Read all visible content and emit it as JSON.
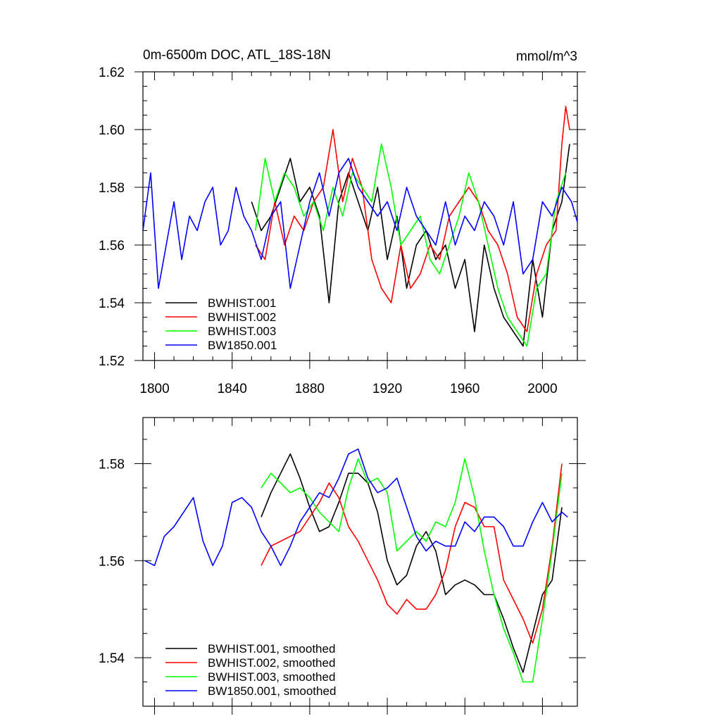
{
  "figure": {
    "title_left": "0m-6500m DOC, ATL_18S-18N",
    "title_right": "mmol/m^3"
  },
  "colors": {
    "BWHIST.001": "#000000",
    "BWHIST.002": "#ff0000",
    "BWHIST.003": "#00ff00",
    "BW1850.001": "#0000ff"
  },
  "chart_data": [
    {
      "type": "line",
      "panel": "top",
      "title": "0m-6500m DOC, ATL_18S-18N",
      "units_label": "mmol/m^3",
      "xlabel": "",
      "ylabel": "",
      "xlim": [
        1794,
        2018
      ],
      "ylim": [
        1.52,
        1.62
      ],
      "xticks": [
        1800,
        1840,
        1880,
        1920,
        1960,
        2000
      ],
      "xtick_labels": [
        "1800",
        "1840",
        "1880",
        "1920",
        "1960",
        "2000"
      ],
      "yticks": [
        1.52,
        1.54,
        1.56,
        1.58,
        1.6,
        1.62
      ],
      "ytick_labels": [
        "1.52",
        "1.54",
        "1.56",
        "1.58",
        "1.60",
        "1.62"
      ],
      "grid": false,
      "legend_position": "bottom-left",
      "series": [
        {
          "name": "BWHIST.001",
          "color": "#000000",
          "x": [
            1850,
            1855,
            1860,
            1865,
            1870,
            1875,
            1880,
            1885,
            1890,
            1895,
            1900,
            1905,
            1910,
            1915,
            1920,
            1925,
            1930,
            1935,
            1940,
            1945,
            1950,
            1955,
            1960,
            1965,
            1970,
            1975,
            1980,
            1985,
            1990,
            1995,
            2000,
            2005,
            2010,
            2014
          ],
          "y": [
            1.575,
            1.565,
            1.57,
            1.58,
            1.59,
            1.575,
            1.58,
            1.57,
            1.54,
            1.575,
            1.585,
            1.575,
            1.565,
            1.58,
            1.555,
            1.57,
            1.545,
            1.56,
            1.565,
            1.555,
            1.56,
            1.545,
            1.555,
            1.53,
            1.56,
            1.545,
            1.535,
            1.53,
            1.525,
            1.555,
            1.535,
            1.565,
            1.575,
            1.595
          ]
        },
        {
          "name": "BWHIST.002",
          "color": "#ff0000",
          "x": [
            1852,
            1857,
            1862,
            1867,
            1872,
            1877,
            1882,
            1887,
            1892,
            1897,
            1902,
            1907,
            1912,
            1917,
            1922,
            1927,
            1932,
            1937,
            1942,
            1947,
            1952,
            1957,
            1962,
            1967,
            1972,
            1977,
            1982,
            1987,
            1992,
            1997,
            2002,
            2007,
            2010,
            2012,
            2014
          ],
          "y": [
            1.56,
            1.555,
            1.575,
            1.56,
            1.57,
            1.565,
            1.575,
            1.58,
            1.6,
            1.575,
            1.59,
            1.58,
            1.555,
            1.545,
            1.54,
            1.56,
            1.545,
            1.55,
            1.56,
            1.555,
            1.57,
            1.575,
            1.58,
            1.575,
            1.565,
            1.56,
            1.55,
            1.535,
            1.53,
            1.55,
            1.56,
            1.565,
            1.595,
            1.608,
            1.6
          ]
        },
        {
          "name": "BWHIST.003",
          "color": "#00ff00",
          "x": [
            1852,
            1857,
            1862,
            1867,
            1872,
            1877,
            1882,
            1887,
            1892,
            1897,
            1902,
            1907,
            1912,
            1917,
            1922,
            1927,
            1932,
            1937,
            1942,
            1947,
            1952,
            1957,
            1962,
            1967,
            1972,
            1977,
            1982,
            1987,
            1992,
            1997,
            2002,
            2007,
            2012
          ],
          "y": [
            1.565,
            1.59,
            1.575,
            1.585,
            1.58,
            1.57,
            1.575,
            1.565,
            1.58,
            1.57,
            1.585,
            1.58,
            1.575,
            1.595,
            1.58,
            1.56,
            1.565,
            1.57,
            1.555,
            1.55,
            1.56,
            1.57,
            1.585,
            1.575,
            1.56,
            1.545,
            1.535,
            1.53,
            1.525,
            1.545,
            1.55,
            1.575,
            1.585
          ]
        },
        {
          "name": "BW1850.001",
          "color": "#0000ff",
          "x": [
            1794,
            1798,
            1802,
            1806,
            1810,
            1814,
            1818,
            1822,
            1826,
            1830,
            1834,
            1838,
            1842,
            1846,
            1850,
            1855,
            1860,
            1865,
            1870,
            1875,
            1880,
            1885,
            1890,
            1895,
            1900,
            1905,
            1910,
            1915,
            1920,
            1925,
            1930,
            1935,
            1940,
            1945,
            1950,
            1955,
            1960,
            1965,
            1970,
            1975,
            1980,
            1985,
            1990,
            1995,
            2000,
            2005,
            2010,
            2015,
            2018
          ],
          "y": [
            1.565,
            1.585,
            1.545,
            1.56,
            1.575,
            1.555,
            1.57,
            1.565,
            1.575,
            1.58,
            1.56,
            1.565,
            1.58,
            1.57,
            1.565,
            1.555,
            1.57,
            1.575,
            1.545,
            1.56,
            1.575,
            1.585,
            1.57,
            1.585,
            1.59,
            1.58,
            1.575,
            1.57,
            1.575,
            1.565,
            1.58,
            1.57,
            1.565,
            1.56,
            1.575,
            1.56,
            1.57,
            1.565,
            1.575,
            1.57,
            1.56,
            1.575,
            1.55,
            1.555,
            1.575,
            1.57,
            1.58,
            1.575,
            1.568
          ]
        }
      ]
    },
    {
      "type": "line",
      "panel": "bottom",
      "title": "",
      "xlabel": "",
      "ylabel": "",
      "xlim": [
        1794,
        2018
      ],
      "ylim": [
        1.53,
        1.5895
      ],
      "xticks": [
        1800,
        1840,
        1880,
        1920,
        1960,
        2000
      ],
      "yticks": [
        1.54,
        1.56,
        1.58
      ],
      "ytick_labels": [
        "1.54",
        "1.56",
        "1.58"
      ],
      "grid": false,
      "legend_position": "bottom-left",
      "series": [
        {
          "name": "BWHIST.001, smoothed",
          "color": "#000000",
          "x": [
            1855,
            1860,
            1865,
            1870,
            1875,
            1880,
            1885,
            1890,
            1895,
            1900,
            1905,
            1910,
            1915,
            1920,
            1925,
            1930,
            1935,
            1940,
            1945,
            1950,
            1955,
            1960,
            1965,
            1970,
            1975,
            1980,
            1985,
            1990,
            1995,
            2000,
            2005,
            2010
          ],
          "y": [
            1.569,
            1.574,
            1.578,
            1.582,
            1.577,
            1.571,
            1.566,
            1.567,
            1.572,
            1.578,
            1.578,
            1.576,
            1.57,
            1.56,
            1.555,
            1.557,
            1.563,
            1.566,
            1.562,
            1.553,
            1.555,
            1.556,
            1.555,
            1.553,
            1.553,
            1.548,
            1.542,
            1.537,
            1.545,
            1.553,
            1.556,
            1.571
          ]
        },
        {
          "name": "BWHIST.002, smoothed",
          "color": "#ff0000",
          "x": [
            1855,
            1860,
            1865,
            1870,
            1875,
            1880,
            1885,
            1890,
            1895,
            1900,
            1905,
            1910,
            1915,
            1920,
            1925,
            1930,
            1935,
            1940,
            1945,
            1950,
            1955,
            1960,
            1965,
            1970,
            1975,
            1980,
            1985,
            1990,
            1995,
            2000,
            2005,
            2010
          ],
          "y": [
            1.559,
            1.563,
            1.564,
            1.565,
            1.566,
            1.569,
            1.572,
            1.576,
            1.573,
            1.567,
            1.564,
            1.56,
            1.556,
            1.551,
            1.549,
            1.552,
            1.55,
            1.55,
            1.553,
            1.558,
            1.567,
            1.572,
            1.571,
            1.567,
            1.567,
            1.556,
            1.552,
            1.548,
            1.543,
            1.55,
            1.563,
            1.58
          ]
        },
        {
          "name": "BWHIST.003, smoothed",
          "color": "#00ff00",
          "x": [
            1855,
            1860,
            1865,
            1870,
            1875,
            1880,
            1885,
            1890,
            1895,
            1900,
            1905,
            1910,
            1915,
            1920,
            1925,
            1930,
            1935,
            1940,
            1945,
            1950,
            1955,
            1960,
            1965,
            1970,
            1975,
            1980,
            1985,
            1990,
            1995,
            2000,
            2005,
            2010
          ],
          "y": [
            1.575,
            1.578,
            1.576,
            1.574,
            1.575,
            1.573,
            1.57,
            1.568,
            1.566,
            1.575,
            1.581,
            1.576,
            1.577,
            1.574,
            1.562,
            1.564,
            1.566,
            1.564,
            1.568,
            1.567,
            1.572,
            1.581,
            1.573,
            1.562,
            1.553,
            1.546,
            1.541,
            1.535,
            1.535,
            1.548,
            1.562,
            1.578
          ]
        },
        {
          "name": "BW1850.001, smoothed",
          "color": "#0000ff",
          "x": [
            1795,
            1800,
            1805,
            1810,
            1815,
            1820,
            1825,
            1830,
            1835,
            1840,
            1845,
            1850,
            1855,
            1860,
            1865,
            1870,
            1875,
            1880,
            1885,
            1890,
            1895,
            1900,
            1905,
            1910,
            1915,
            1920,
            1925,
            1930,
            1935,
            1940,
            1945,
            1950,
            1955,
            1960,
            1965,
            1970,
            1975,
            1980,
            1985,
            1990,
            1995,
            2000,
            2005,
            2010,
            2013
          ],
          "y": [
            1.56,
            1.559,
            1.565,
            1.567,
            1.57,
            1.573,
            1.564,
            1.559,
            1.563,
            1.572,
            1.573,
            1.571,
            1.566,
            1.563,
            1.559,
            1.563,
            1.568,
            1.571,
            1.574,
            1.573,
            1.577,
            1.582,
            1.583,
            1.577,
            1.574,
            1.575,
            1.577,
            1.571,
            1.565,
            1.562,
            1.564,
            1.563,
            1.563,
            1.568,
            1.566,
            1.569,
            1.569,
            1.567,
            1.563,
            1.563,
            1.568,
            1.572,
            1.568,
            1.57,
            1.569
          ]
        }
      ]
    }
  ]
}
